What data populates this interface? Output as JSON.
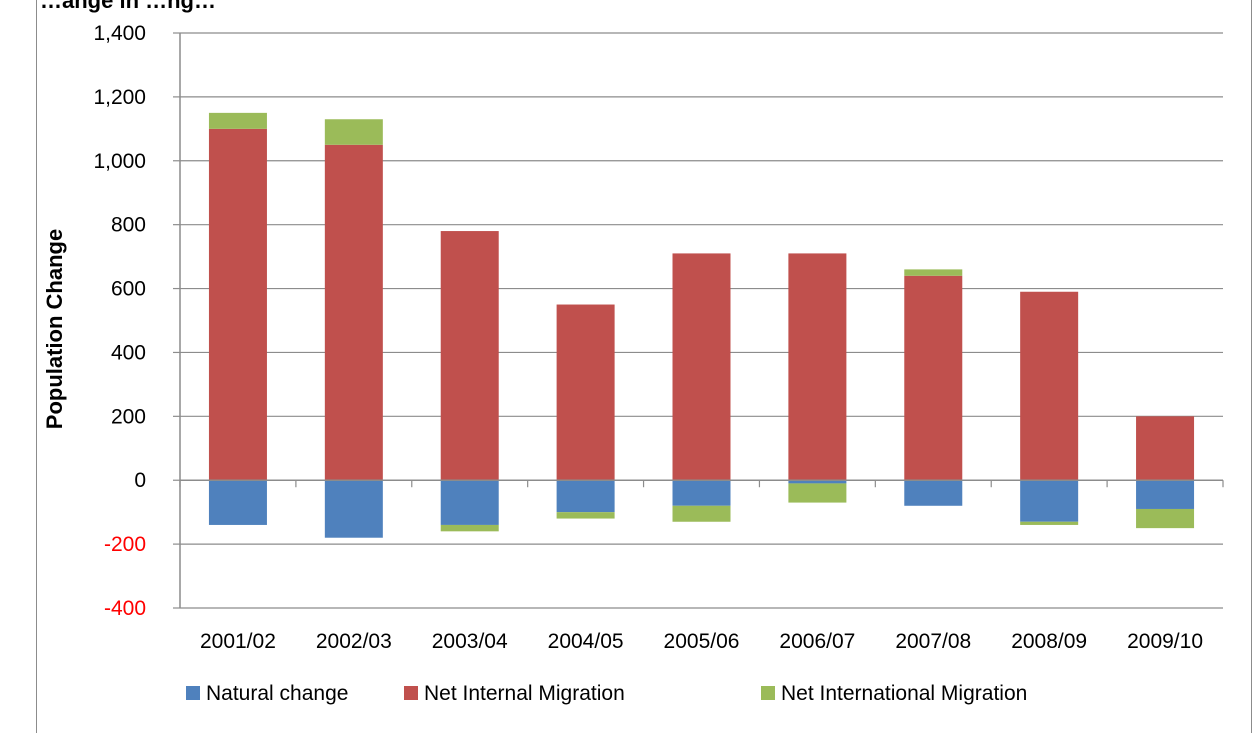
{
  "chart_data": {
    "type": "bar",
    "stacked": true,
    "title": "…ange in …ng…",
    "ylabel": "Population Change",
    "xlabel": "",
    "categories": [
      "2001/02",
      "2002/03",
      "2003/04",
      "2004/05",
      "2005/06",
      "2006/07",
      "2007/08",
      "2008/09",
      "2009/10"
    ],
    "ylim": [
      -400,
      1400
    ],
    "yticks": [
      -400,
      -200,
      0,
      200,
      400,
      600,
      800,
      1000,
      1200,
      1400
    ],
    "ytick_labels": [
      "-400",
      "-200",
      "0",
      "200",
      "400",
      "600",
      "800",
      "1,000",
      "1,200",
      "1,400"
    ],
    "negative_tick_color": "#ff0000",
    "grid": true,
    "legend_position": "bottom",
    "series": [
      {
        "name": "Natural change",
        "color": "#4f81bd",
        "values": [
          -140,
          -180,
          -140,
          -100,
          -80,
          -10,
          -80,
          -130,
          -90
        ]
      },
      {
        "name": "Net Internal Migration",
        "color": "#c0504d",
        "values": [
          1100,
          1050,
          780,
          550,
          710,
          710,
          640,
          590,
          200
        ]
      },
      {
        "name": "Net International Migration",
        "color": "#9bbb59",
        "values": [
          50,
          80,
          -20,
          -20,
          -50,
          -60,
          20,
          -10,
          -60
        ]
      }
    ]
  }
}
